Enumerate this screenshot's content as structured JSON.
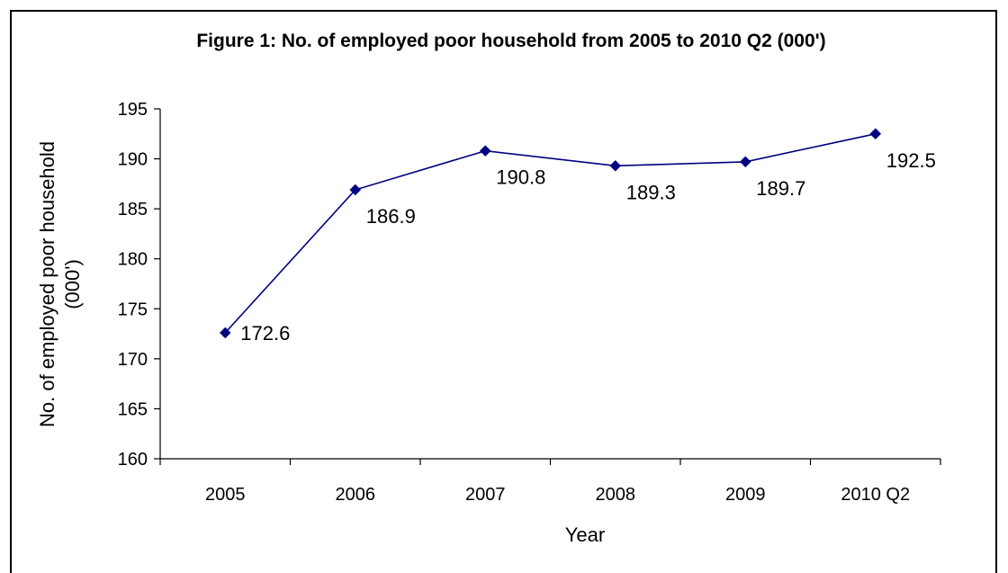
{
  "chart_data": {
    "type": "line",
    "title": "Figure 1: No. of employed poor household from 2005 to 2010 Q2 (000')",
    "xlabel": "Year",
    "ylabel_lines": [
      "No. of employed poor household",
      "(000')"
    ],
    "categories": [
      "2005",
      "2006",
      "2007",
      "2008",
      "2009",
      "2010 Q2"
    ],
    "series": [
      {
        "values": [
          172.6,
          186.9,
          190.8,
          189.3,
          189.7,
          192.5
        ],
        "data_labels": [
          "172.6",
          "186.9",
          "190.8",
          "189.3",
          "189.7",
          "192.5"
        ],
        "color": "#000080",
        "marker": "diamond"
      }
    ],
    "ylim": [
      160,
      195
    ],
    "yticks": [
      160,
      165,
      170,
      175,
      180,
      185,
      190,
      195
    ],
    "grid": false,
    "legend": "none"
  }
}
